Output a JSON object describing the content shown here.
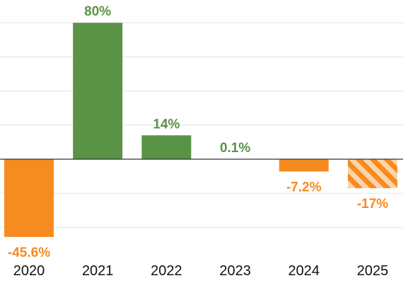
{
  "chart_data": {
    "type": "bar",
    "categories": [
      "2020",
      "2021",
      "2022",
      "2023",
      "2024",
      "2025"
    ],
    "values": [
      -45.6,
      80,
      14,
      0.1,
      -7.2,
      -17
    ],
    "value_labels": [
      "-45.6%",
      "80%",
      "14%",
      "0.1%",
      "-7.2%",
      "-17%"
    ],
    "projected": [
      false,
      false,
      false,
      false,
      false,
      true
    ],
    "ylim": [
      -50,
      80
    ],
    "gridlines": [
      -40,
      -20,
      20,
      40,
      60,
      80
    ],
    "grid": true,
    "colors": {
      "positive": "#5a9346",
      "negative": "#f68b20",
      "grid": "#e3e3e3",
      "zero_line": "#333333"
    }
  }
}
